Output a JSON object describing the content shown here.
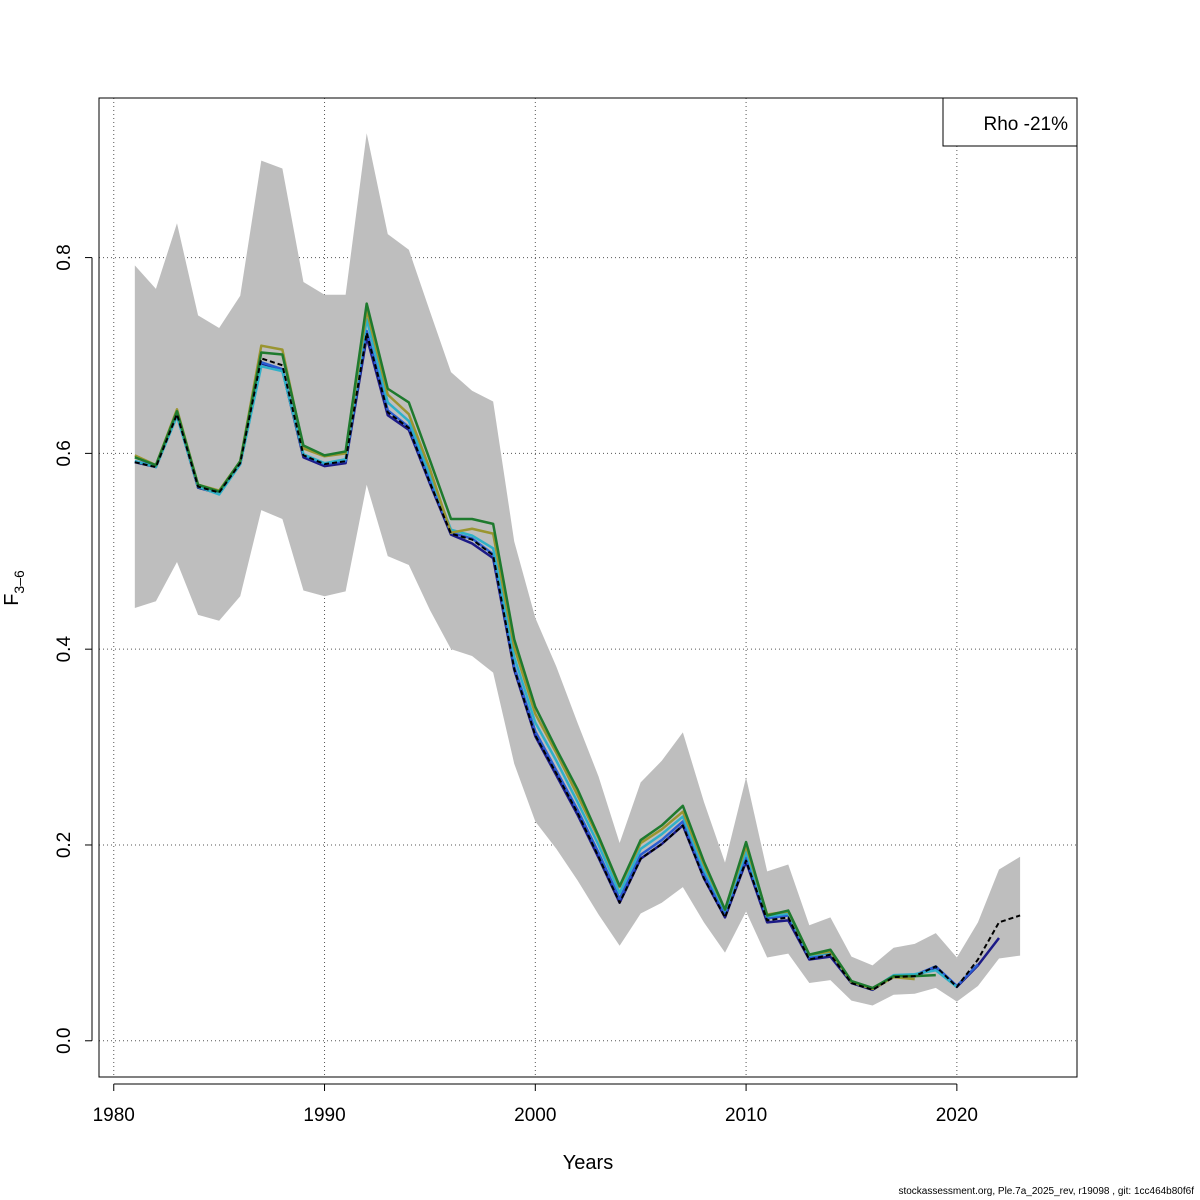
{
  "footer_text": "stockassessment.org, Ple.7a_2025_rev, r19098 , git: 1cc464b80f6f",
  "chart_data": {
    "type": "line",
    "xlabel": "Years",
    "ylabel_main": "F",
    "ylabel_sub": "3–6",
    "legend": {
      "text": "Rho -21%",
      "position": "top-right"
    },
    "xlim": [
      1979.3,
      2025.7
    ],
    "ylim": [
      -0.037,
      0.963
    ],
    "x_ticks": [
      1980,
      1990,
      2000,
      2010,
      2020
    ],
    "y_ticks": [
      0.0,
      0.2,
      0.4,
      0.6,
      0.8
    ],
    "y_tick_labels": [
      "0.0",
      "0.2",
      "0.4",
      "0.6",
      "0.8"
    ],
    "grid": true,
    "colors": {
      "band": "#bebebe",
      "base": "#000000",
      "peel_navy": "#1c1a87",
      "peel_blue": "#2a5cd1",
      "peel_cyan": "#2fb0c8",
      "peel_olive": "#9a9530",
      "peel_green": "#1e7a2e"
    },
    "confidence_band": {
      "x": [
        1981,
        1982,
        1983,
        1984,
        1985,
        1986,
        1987,
        1988,
        1989,
        1990,
        1991,
        1992,
        1993,
        1994,
        1995,
        1996,
        1997,
        1998,
        1999,
        2000,
        2001,
        2002,
        2003,
        2004,
        2005,
        2006,
        2007,
        2008,
        2009,
        2010,
        2011,
        2012,
        2013,
        2014,
        2015,
        2016,
        2017,
        2018,
        2019,
        2020,
        2021,
        2022,
        2023
      ],
      "upper": [
        0.792,
        0.768,
        0.835,
        0.741,
        0.728,
        0.761,
        0.899,
        0.891,
        0.775,
        0.762,
        0.762,
        0.927,
        0.824,
        0.808,
        0.745,
        0.683,
        0.664,
        0.653,
        0.51,
        0.432,
        0.382,
        0.325,
        0.27,
        0.202,
        0.264,
        0.286,
        0.315,
        0.244,
        0.182,
        0.269,
        0.173,
        0.18,
        0.118,
        0.126,
        0.086,
        0.077,
        0.095,
        0.099,
        0.11,
        0.085,
        0.121,
        0.175,
        0.188
      ],
      "lower": [
        0.442,
        0.449,
        0.489,
        0.435,
        0.429,
        0.454,
        0.542,
        0.533,
        0.46,
        0.454,
        0.459,
        0.568,
        0.495,
        0.486,
        0.44,
        0.4,
        0.393,
        0.376,
        0.283,
        0.224,
        0.196,
        0.164,
        0.129,
        0.097,
        0.13,
        0.141,
        0.157,
        0.121,
        0.09,
        0.132,
        0.085,
        0.089,
        0.059,
        0.062,
        0.041,
        0.036,
        0.047,
        0.048,
        0.054,
        0.04,
        0.056,
        0.084,
        0.087
      ]
    },
    "series": [
      {
        "color_key": "base",
        "dashed": true,
        "x": [
          1981,
          1982,
          1983,
          1984,
          1985,
          1986,
          1987,
          1988,
          1989,
          1990,
          1991,
          1992,
          1993,
          1994,
          1995,
          1996,
          1997,
          1998,
          1999,
          2000,
          2001,
          2002,
          2003,
          2004,
          2005,
          2006,
          2007,
          2008,
          2009,
          2010,
          2011,
          2012,
          2013,
          2014,
          2015,
          2016,
          2017,
          2018,
          2019,
          2020,
          2021,
          2022,
          2023
        ],
        "values": [
          0.591,
          0.586,
          0.64,
          0.566,
          0.56,
          0.59,
          0.697,
          0.69,
          0.598,
          0.589,
          0.592,
          0.723,
          0.642,
          0.626,
          0.57,
          0.518,
          0.512,
          0.496,
          0.38,
          0.312,
          0.273,
          0.233,
          0.188,
          0.141,
          0.186,
          0.201,
          0.22,
          0.166,
          0.126,
          0.184,
          0.123,
          0.126,
          0.083,
          0.088,
          0.059,
          0.052,
          0.065,
          0.066,
          0.076,
          0.055,
          0.083,
          0.121,
          0.128
        ]
      },
      {
        "color_key": "peel_navy",
        "dashed": false,
        "x": [
          1981,
          1982,
          1983,
          1984,
          1985,
          1986,
          1987,
          1988,
          1989,
          1990,
          1991,
          1992,
          1993,
          1994,
          1995,
          1996,
          1997,
          1998,
          1999,
          2000,
          2001,
          2002,
          2003,
          2004,
          2005,
          2006,
          2007,
          2008,
          2009,
          2010,
          2011,
          2012,
          2013,
          2014,
          2015,
          2016,
          2017,
          2018,
          2019,
          2020,
          2021,
          2022
        ],
        "values": [
          0.591,
          0.586,
          0.639,
          0.565,
          0.559,
          0.589,
          0.692,
          0.685,
          0.596,
          0.587,
          0.59,
          0.719,
          0.639,
          0.624,
          0.569,
          0.517,
          0.508,
          0.493,
          0.379,
          0.311,
          0.271,
          0.231,
          0.187,
          0.141,
          0.186,
          0.201,
          0.22,
          0.166,
          0.126,
          0.183,
          0.121,
          0.123,
          0.083,
          0.086,
          0.059,
          0.052,
          0.066,
          0.066,
          0.075,
          0.055,
          0.077,
          0.105
        ]
      },
      {
        "color_key": "peel_blue",
        "dashed": false,
        "x": [
          1981,
          1982,
          1983,
          1984,
          1985,
          1986,
          1987,
          1988,
          1989,
          1990,
          1991,
          1992,
          1993,
          1994,
          1995,
          1996,
          1997,
          1998,
          1999,
          2000,
          2001,
          2002,
          2003,
          2004,
          2005,
          2006,
          2007,
          2008,
          2009,
          2010,
          2011,
          2012,
          2013,
          2014,
          2015,
          2016,
          2017,
          2018,
          2019,
          2020,
          2021
        ],
        "values": [
          0.592,
          0.587,
          0.64,
          0.566,
          0.56,
          0.59,
          0.693,
          0.686,
          0.598,
          0.589,
          0.592,
          0.725,
          0.644,
          0.627,
          0.572,
          0.519,
          0.513,
          0.497,
          0.382,
          0.316,
          0.276,
          0.236,
          0.192,
          0.145,
          0.19,
          0.205,
          0.224,
          0.17,
          0.129,
          0.187,
          0.125,
          0.128,
          0.085,
          0.09,
          0.06,
          0.053,
          0.066,
          0.067,
          0.076,
          0.056,
          0.078
        ]
      },
      {
        "color_key": "peel_cyan",
        "dashed": false,
        "x": [
          1981,
          1982,
          1983,
          1984,
          1985,
          1986,
          1987,
          1988,
          1989,
          1990,
          1991,
          1992,
          1993,
          1994,
          1995,
          1996,
          1997,
          1998,
          1999,
          2000,
          2001,
          2002,
          2003,
          2004,
          2005,
          2006,
          2007,
          2008,
          2009,
          2010,
          2011,
          2012,
          2013,
          2014,
          2015,
          2016,
          2017,
          2018,
          2019,
          2020
        ],
        "values": [
          0.592,
          0.586,
          0.638,
          0.566,
          0.558,
          0.589,
          0.689,
          0.684,
          0.599,
          0.59,
          0.594,
          0.737,
          0.652,
          0.633,
          0.578,
          0.522,
          0.516,
          0.503,
          0.392,
          0.325,
          0.286,
          0.244,
          0.2,
          0.151,
          0.196,
          0.211,
          0.229,
          0.175,
          0.133,
          0.193,
          0.127,
          0.13,
          0.087,
          0.09,
          0.06,
          0.053,
          0.067,
          0.068,
          0.072,
          0.055
        ]
      },
      {
        "color_key": "peel_olive",
        "dashed": false,
        "x": [
          1981,
          1982,
          1983,
          1984,
          1985,
          1986,
          1987,
          1988,
          1989,
          1990,
          1991,
          1992,
          1993,
          1994,
          1995,
          1996,
          1997,
          1998,
          1999,
          2000,
          2001,
          2002,
          2003,
          2004,
          2005,
          2006,
          2007,
          2008,
          2009,
          2010,
          2011,
          2012,
          2013,
          2014,
          2015,
          2016,
          2017,
          2018
        ],
        "values": [
          0.598,
          0.588,
          0.645,
          0.568,
          0.562,
          0.592,
          0.71,
          0.706,
          0.605,
          0.597,
          0.6,
          0.746,
          0.66,
          0.64,
          0.584,
          0.519,
          0.523,
          0.518,
          0.402,
          0.334,
          0.294,
          0.251,
          0.207,
          0.157,
          0.202,
          0.216,
          0.234,
          0.18,
          0.134,
          0.199,
          0.129,
          0.132,
          0.088,
          0.091,
          0.06,
          0.053,
          0.065,
          0.063
        ]
      },
      {
        "color_key": "peel_green",
        "dashed": false,
        "x": [
          1981,
          1982,
          1983,
          1984,
          1985,
          1986,
          1987,
          1988,
          1989,
          1990,
          1991,
          1992,
          1993,
          1994,
          1995,
          1996,
          1997,
          1998,
          1999,
          2000,
          2001,
          2002,
          2003,
          2004,
          2005,
          2006,
          2007,
          2008,
          2009,
          2010,
          2011,
          2012,
          2013,
          2014,
          2015,
          2016,
          2017,
          2018,
          2019
        ],
        "values": [
          0.596,
          0.588,
          0.643,
          0.568,
          0.561,
          0.592,
          0.703,
          0.701,
          0.608,
          0.598,
          0.602,
          0.753,
          0.666,
          0.652,
          0.593,
          0.533,
          0.533,
          0.528,
          0.41,
          0.341,
          0.298,
          0.257,
          0.209,
          0.158,
          0.205,
          0.22,
          0.24,
          0.183,
          0.134,
          0.203,
          0.128,
          0.133,
          0.088,
          0.093,
          0.061,
          0.054,
          0.066,
          0.066,
          0.067
        ]
      }
    ]
  }
}
